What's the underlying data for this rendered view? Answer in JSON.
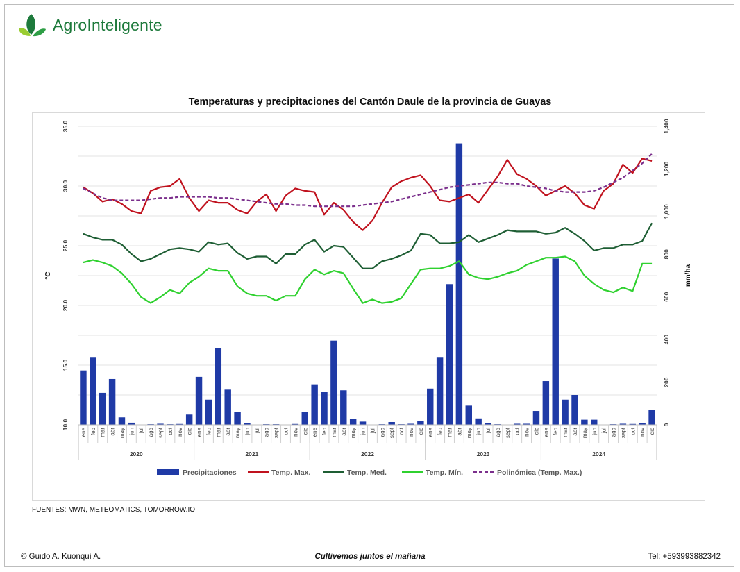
{
  "header": {
    "brand": "AgroInteligente",
    "logo_icon": "leaf-logo-icon"
  },
  "sources": "FUENTES: MWN, METEOMATICS, TOMORROW.IO",
  "footer": {
    "left": "© Guido A. Kuonquí A.",
    "center": "Cultivemos juntos el mañana",
    "right": "Tel: +593993882342"
  },
  "chart_data": {
    "type": "bar+line",
    "title": "Temperaturas y precipitaciones del Cantón Daule de la provincia de Guayas",
    "ylabel_left": "°C",
    "ylabel_right": "mm/ha",
    "y_left_range": [
      10,
      35
    ],
    "y_left_ticks": [
      "10.0",
      "15.0",
      "20.0",
      "25.0",
      "30.0",
      "35.0"
    ],
    "y_right_range": [
      0,
      1400
    ],
    "y_right_ticks": [
      "0",
      "200",
      "400",
      "600",
      "800",
      "1,000",
      "1,200",
      "1,400"
    ],
    "grid": true,
    "legend_position": "bottom",
    "years": [
      "2020",
      "2021",
      "2022",
      "2023",
      "2024"
    ],
    "months": [
      "ene",
      "feb",
      "mar",
      "abr",
      "may",
      "jun",
      "jul",
      "ago",
      "sept",
      "oct",
      "nov",
      "dic"
    ],
    "colors": {
      "precip": "#1f3aa6",
      "tmax": "#c0121e",
      "tmed": "#1e5e34",
      "tmin": "#2fd12f",
      "poly": "#7b2f8c",
      "grid": "#e3e3e3"
    },
    "series": [
      {
        "name": "Precipitaciones",
        "axis": "right",
        "kind": "bar",
        "values": [
          255,
          315,
          150,
          215,
          35,
          10,
          0,
          3,
          5,
          3,
          4,
          48,
          225,
          118,
          360,
          165,
          60,
          8,
          0,
          3,
          3,
          0,
          4,
          60,
          190,
          155,
          395,
          162,
          28,
          15,
          0,
          3,
          13,
          3,
          5,
          18,
          170,
          315,
          660,
          1320,
          90,
          30,
          7,
          3,
          0,
          5,
          5,
          65,
          205,
          780,
          118,
          140,
          24,
          24,
          0,
          3,
          5,
          4,
          8,
          70
        ]
      },
      {
        "name": "Temp. Max.",
        "axis": "left",
        "kind": "line",
        "values": [
          29.9,
          29.4,
          28.7,
          28.9,
          28.5,
          27.9,
          27.7,
          29.6,
          29.9,
          30.0,
          30.6,
          29.0,
          27.9,
          28.8,
          28.6,
          28.6,
          28.0,
          27.7,
          28.7,
          29.3,
          27.9,
          29.2,
          29.8,
          29.6,
          29.5,
          27.6,
          28.6,
          28.0,
          27.0,
          26.3,
          27.1,
          28.6,
          29.9,
          30.4,
          30.7,
          30.9,
          30.0,
          28.8,
          28.7,
          29.0,
          29.3,
          28.6,
          29.7,
          30.8,
          32.2,
          31.0,
          30.6,
          30.0,
          29.2,
          29.6,
          30.0,
          29.4,
          28.4,
          28.1,
          29.6,
          30.2,
          31.8,
          31.1,
          32.3,
          32.1
        ]
      },
      {
        "name": "Temp. Med.",
        "axis": "left",
        "kind": "line",
        "values": [
          26.0,
          25.7,
          25.5,
          25.5,
          25.1,
          24.3,
          23.7,
          23.9,
          24.3,
          24.7,
          24.8,
          24.7,
          24.5,
          25.3,
          25.1,
          25.2,
          24.4,
          23.9,
          24.1,
          24.1,
          23.5,
          24.3,
          24.3,
          25.1,
          25.5,
          24.5,
          25.0,
          24.9,
          24.0,
          23.1,
          23.1,
          23.7,
          23.9,
          24.2,
          24.6,
          26.0,
          25.9,
          25.2,
          25.2,
          25.3,
          25.9,
          25.3,
          25.6,
          25.9,
          26.3,
          26.2,
          26.2,
          26.2,
          26.0,
          26.1,
          26.5,
          26.0,
          25.4,
          24.6,
          24.8,
          24.8,
          25.1,
          25.1,
          25.4,
          26.9
        ]
      },
      {
        "name": "Temp. Mín.",
        "axis": "left",
        "kind": "line",
        "values": [
          23.6,
          23.8,
          23.6,
          23.3,
          22.7,
          21.8,
          20.7,
          20.2,
          20.7,
          21.3,
          21.0,
          21.9,
          22.4,
          23.1,
          22.9,
          22.9,
          21.6,
          21.0,
          20.8,
          20.8,
          20.4,
          20.8,
          20.8,
          22.2,
          23.0,
          22.6,
          22.9,
          22.7,
          21.4,
          20.2,
          20.5,
          20.2,
          20.3,
          20.6,
          21.8,
          23.0,
          23.1,
          23.1,
          23.3,
          23.7,
          22.6,
          22.3,
          22.2,
          22.4,
          22.7,
          22.9,
          23.4,
          23.7,
          24.0,
          24.0,
          24.1,
          23.7,
          22.5,
          21.8,
          21.3,
          21.1,
          21.5,
          21.2,
          23.5,
          23.5
        ]
      },
      {
        "name": "Polinómica (Temp. Max.)",
        "axis": "left",
        "kind": "dashed",
        "values": [
          29.8,
          29.4,
          29.0,
          28.8,
          28.8,
          28.8,
          28.8,
          28.9,
          29.0,
          29.0,
          29.1,
          29.1,
          29.1,
          29.1,
          29.0,
          29.0,
          28.9,
          28.8,
          28.7,
          28.6,
          28.5,
          28.5,
          28.4,
          28.4,
          28.3,
          28.3,
          28.3,
          28.3,
          28.3,
          28.4,
          28.5,
          28.6,
          28.7,
          28.9,
          29.1,
          29.3,
          29.5,
          29.7,
          29.9,
          30.0,
          30.1,
          30.2,
          30.3,
          30.3,
          30.2,
          30.2,
          30.0,
          29.9,
          29.8,
          29.6,
          29.5,
          29.5,
          29.5,
          29.6,
          29.9,
          30.3,
          30.7,
          31.3,
          31.9,
          32.7
        ]
      }
    ]
  }
}
